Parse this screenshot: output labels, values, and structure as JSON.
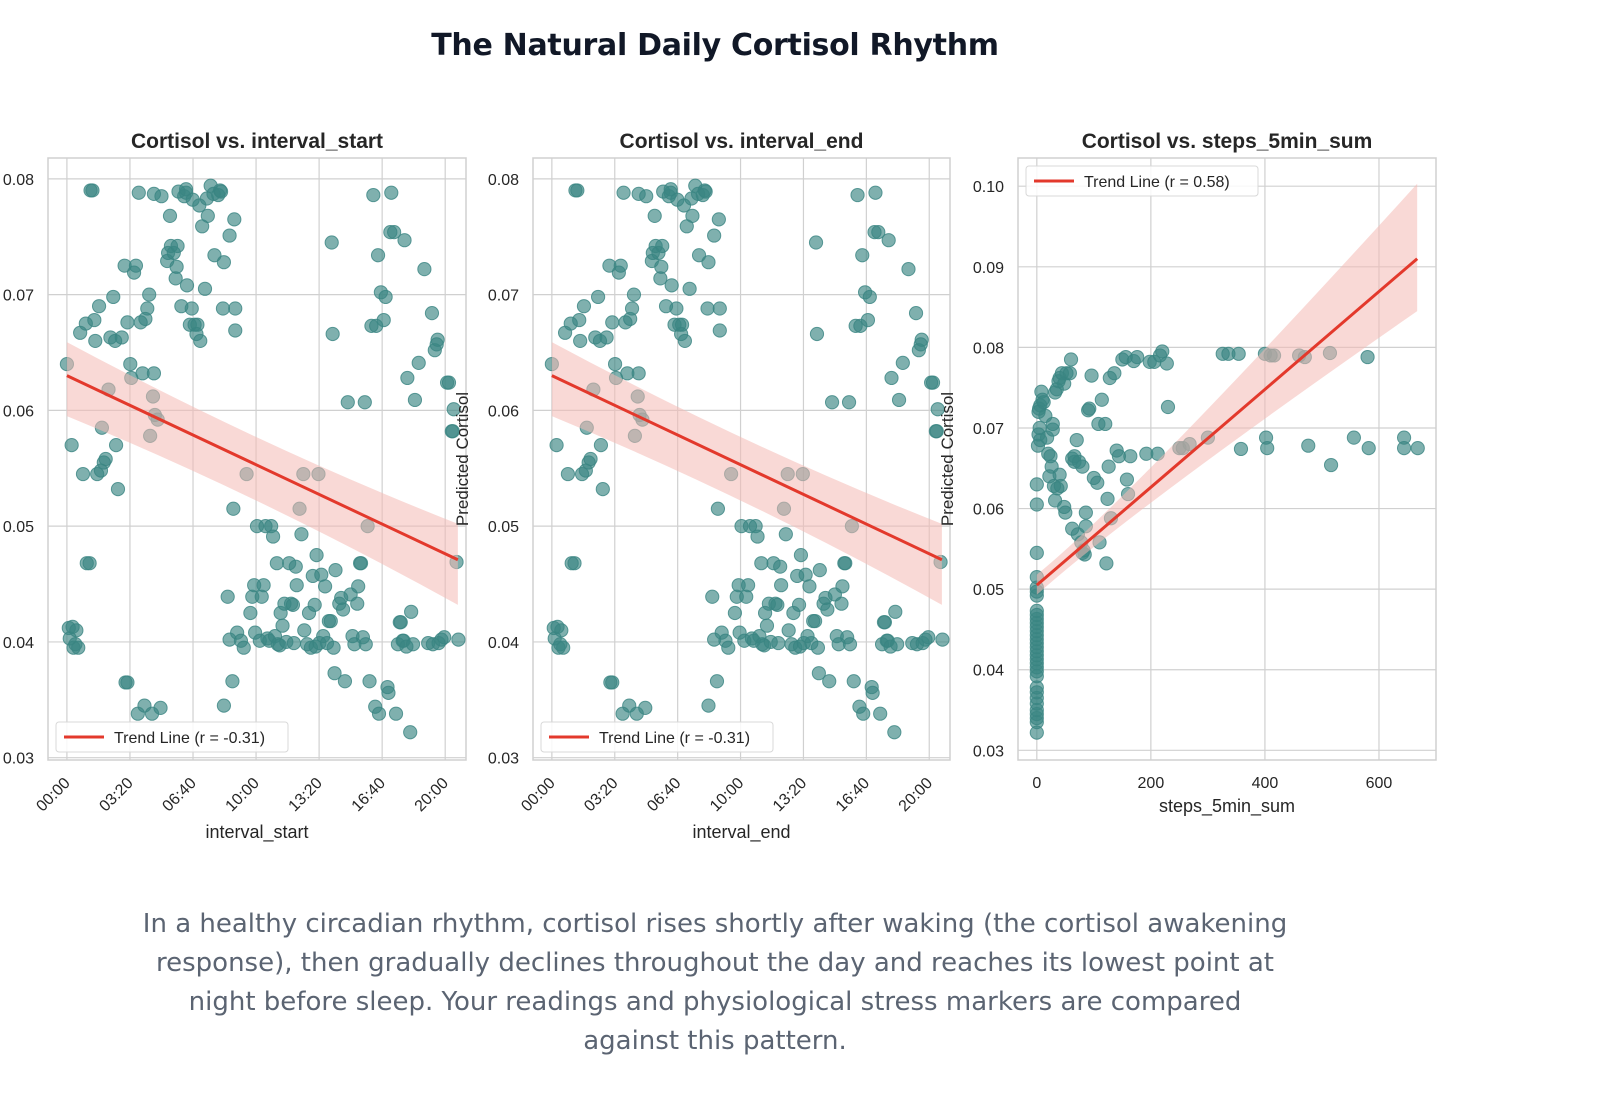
{
  "page": {
    "title": "The Natural Daily Cortisol Rhythm",
    "caption": "In a healthy circadian rhythm, cortisol rises shortly after waking (the cortisol awakening response), then gradually declines throughout the day and reaches its lowest point at night before sleep. Your readings and physiological stress markers are compared against this pattern."
  },
  "colors": {
    "points": "#3a8582",
    "trend": "#e3392c",
    "band": "#f4b9b5",
    "grid": "#d0d0d0",
    "title": "#111827",
    "caption": "#5b6472"
  },
  "chart_data": [
    {
      "type": "scatter",
      "title": "Cortisol vs. interval_start",
      "xlabel": "interval_start",
      "ylabel": "Predicted Cortisol",
      "x_unit": "hours",
      "xlim": [
        -1,
        21.1
      ],
      "ylim": [
        0.0298,
        0.0818
      ],
      "xticks": [
        0,
        3.333,
        6.667,
        10,
        13.333,
        16.667,
        20
      ],
      "xtick_labels": [
        "00:00",
        "03:20",
        "06:40",
        "10:00",
        "13:20",
        "16:40",
        "20:00"
      ],
      "yticks": [
        0.03,
        0.04,
        0.05,
        0.06,
        0.07,
        0.08
      ],
      "ytick_labels": [
        "0.03",
        "0.04",
        "0.05",
        "0.06",
        "0.07",
        "0.08"
      ],
      "grid": true,
      "legend": {
        "label": "Trend Line (r = -0.31)",
        "position": "lower-left"
      },
      "trend": {
        "r": -0.31,
        "x": [
          0,
          20.67
        ],
        "y": [
          0.063,
          0.0471
        ],
        "band_low": [
          0.0595,
          0.0432
        ],
        "band_high": [
          0.0659,
          0.0502
        ]
      },
      "points": "shared_time"
    },
    {
      "type": "scatter",
      "title": "Cortisol vs. interval_end",
      "xlabel": "interval_end",
      "ylabel": "Predicted Cortisol",
      "x_unit": "hours",
      "xlim": [
        -1,
        21.1
      ],
      "ylim": [
        0.0298,
        0.0818
      ],
      "xticks": [
        0,
        3.333,
        6.667,
        10,
        13.333,
        16.667,
        20
      ],
      "xtick_labels": [
        "00:00",
        "03:20",
        "06:40",
        "10:00",
        "13:20",
        "16:40",
        "20:00"
      ],
      "yticks": [
        0.03,
        0.04,
        0.05,
        0.06,
        0.07,
        0.08
      ],
      "ytick_labels": [
        "0.03",
        "0.04",
        "0.05",
        "0.06",
        "0.07",
        "0.08"
      ],
      "grid": true,
      "legend": {
        "label": "Trend Line (r = -0.31)",
        "position": "lower-left"
      },
      "trend": {
        "r": -0.31,
        "x": [
          0,
          20.67
        ],
        "y": [
          0.063,
          0.0471
        ],
        "band_low": [
          0.0595,
          0.0432
        ],
        "band_high": [
          0.0659,
          0.0502
        ]
      },
      "points": "shared_time"
    },
    {
      "type": "scatter",
      "title": "Cortisol vs. steps_5min_sum",
      "xlabel": "steps_5min_sum",
      "ylabel": "Predicted Cortisol",
      "xlim": [
        -33,
        700
      ],
      "ylim": [
        0.0288,
        0.1035
      ],
      "xticks": [
        0,
        200,
        400,
        600
      ],
      "xtick_labels": [
        "0",
        "200",
        "400",
        "600"
      ],
      "yticks": [
        0.03,
        0.04,
        0.05,
        0.06,
        0.07,
        0.08,
        0.09,
        0.1
      ],
      "ytick_labels": [
        "0.03",
        "0.04",
        "0.05",
        "0.06",
        "0.07",
        "0.08",
        "0.09",
        "0.10"
      ],
      "grid": true,
      "legend": {
        "label": "Trend Line (r = 0.58)",
        "position": "upper-left"
      },
      "trend": {
        "r": 0.58,
        "x": [
          0,
          667
        ],
        "y": [
          0.0505,
          0.091
        ],
        "band_low": [
          0.0493,
          0.0845
        ],
        "band_high": [
          0.0518,
          0.1003
        ]
      },
      "points_xy": [
        [
          0,
          0.0322
        ],
        [
          0,
          0.0335
        ],
        [
          0,
          0.034
        ],
        [
          0,
          0.0345
        ],
        [
          0,
          0.035
        ],
        [
          0,
          0.0358
        ],
        [
          0,
          0.0365
        ],
        [
          0,
          0.0372
        ],
        [
          0,
          0.0378
        ],
        [
          0,
          0.0392
        ],
        [
          0,
          0.0398
        ],
        [
          0,
          0.0403
        ],
        [
          0,
          0.0408
        ],
        [
          0,
          0.0413
        ],
        [
          0,
          0.0418
        ],
        [
          0,
          0.0423
        ],
        [
          0,
          0.0428
        ],
        [
          0,
          0.0433
        ],
        [
          0,
          0.0438
        ],
        [
          0,
          0.0443
        ],
        [
          0,
          0.0448
        ],
        [
          0,
          0.0453
        ],
        [
          0,
          0.0458
        ],
        [
          0,
          0.0463
        ],
        [
          0,
          0.0468
        ],
        [
          0,
          0.0473
        ],
        [
          0,
          0.0492
        ],
        [
          0,
          0.0497
        ],
        [
          0,
          0.0502
        ],
        [
          0,
          0.0515
        ],
        [
          0,
          0.0545
        ],
        [
          0,
          0.0605
        ],
        [
          0,
          0.063
        ],
        [
          2,
          0.0678
        ],
        [
          3,
          0.0692
        ],
        [
          5,
          0.07
        ],
        [
          6,
          0.0685
        ],
        [
          4,
          0.0724
        ],
        [
          6,
          0.0728
        ],
        [
          8,
          0.0745
        ],
        [
          10,
          0.0735
        ],
        [
          3,
          0.072
        ],
        [
          12,
          0.0732
        ],
        [
          15,
          0.0715
        ],
        [
          18,
          0.0688
        ],
        [
          20,
          0.0668
        ],
        [
          24,
          0.0665
        ],
        [
          26,
          0.0652
        ],
        [
          22,
          0.064
        ],
        [
          30,
          0.0628
        ],
        [
          32,
          0.061
        ],
        [
          36,
          0.0625
        ],
        [
          40,
          0.0642
        ],
        [
          42,
          0.0628
        ],
        [
          48,
          0.0602
        ],
        [
          50,
          0.0595
        ],
        [
          28,
          0.0698
        ],
        [
          28,
          0.0705
        ],
        [
          32,
          0.0744
        ],
        [
          35,
          0.0748
        ],
        [
          38,
          0.0758
        ],
        [
          40,
          0.0762
        ],
        [
          44,
          0.0768
        ],
        [
          48,
          0.0755
        ],
        [
          52,
          0.0768
        ],
        [
          58,
          0.0768
        ],
        [
          60,
          0.0785
        ],
        [
          62,
          0.0662
        ],
        [
          66,
          0.0658
        ],
        [
          66,
          0.0665
        ],
        [
          70,
          0.0685
        ],
        [
          74,
          0.0658
        ],
        [
          80,
          0.0652
        ],
        [
          62,
          0.0575
        ],
        [
          72,
          0.0568
        ],
        [
          78,
          0.0558
        ],
        [
          80,
          0.0545
        ],
        [
          82,
          0.0548
        ],
        [
          84,
          0.0543
        ],
        [
          86,
          0.0578
        ],
        [
          86,
          0.0595
        ],
        [
          90,
          0.0722
        ],
        [
          92,
          0.0724
        ],
        [
          96,
          0.0765
        ],
        [
          100,
          0.0638
        ],
        [
          106,
          0.0632
        ],
        [
          108,
          0.0705
        ],
        [
          110,
          0.0558
        ],
        [
          114,
          0.0735
        ],
        [
          120,
          0.0705
        ],
        [
          122,
          0.0532
        ],
        [
          124,
          0.0612
        ],
        [
          126,
          0.0652
        ],
        [
          128,
          0.0762
        ],
        [
          130,
          0.0588
        ],
        [
          136,
          0.0768
        ],
        [
          140,
          0.0672
        ],
        [
          144,
          0.0665
        ],
        [
          150,
          0.0785
        ],
        [
          156,
          0.0788
        ],
        [
          158,
          0.0636
        ],
        [
          160,
          0.0618
        ],
        [
          164,
          0.0665
        ],
        [
          170,
          0.0783
        ],
        [
          176,
          0.0788
        ],
        [
          192,
          0.0668
        ],
        [
          198,
          0.0782
        ],
        [
          206,
          0.0782
        ],
        [
          212,
          0.0668
        ],
        [
          216,
          0.079
        ],
        [
          220,
          0.0795
        ],
        [
          228,
          0.078
        ],
        [
          230,
          0.0726
        ],
        [
          250,
          0.0675
        ],
        [
          256,
          0.0675
        ],
        [
          268,
          0.068
        ],
        [
          300,
          0.0688
        ],
        [
          326,
          0.0792
        ],
        [
          336,
          0.0792
        ],
        [
          354,
          0.0792
        ],
        [
          358,
          0.0674
        ],
        [
          400,
          0.0792
        ],
        [
          402,
          0.0688
        ],
        [
          404,
          0.0675
        ],
        [
          410,
          0.079
        ],
        [
          416,
          0.079
        ],
        [
          460,
          0.079
        ],
        [
          470,
          0.0788
        ],
        [
          476,
          0.0678
        ],
        [
          514,
          0.0793
        ],
        [
          516,
          0.0654
        ],
        [
          556,
          0.0688
        ],
        [
          580,
          0.0788
        ],
        [
          582,
          0.0675
        ],
        [
          644,
          0.0688
        ],
        [
          644,
          0.0675
        ],
        [
          668,
          0.0675
        ]
      ]
    }
  ],
  "shared_time_points": [
    [
      0,
      0.064
    ],
    [
      0.1,
      0.0412
    ],
    [
      0.15,
      0.0403
    ],
    [
      0.25,
      0.057
    ],
    [
      0.3,
      0.0413
    ],
    [
      0.35,
      0.0395
    ],
    [
      0.45,
      0.0398
    ],
    [
      0.5,
      0.041
    ],
    [
      0.6,
      0.0395
    ],
    [
      0.7,
      0.0667
    ],
    [
      1.0,
      0.0675
    ],
    [
      0.85,
      0.0545
    ],
    [
      1.05,
      0.0468
    ],
    [
      1.2,
      0.0468
    ],
    [
      1.25,
      0.079
    ],
    [
      1.35,
      0.079
    ],
    [
      1.45,
      0.0678
    ],
    [
      1.5,
      0.066
    ],
    [
      1.6,
      0.0545
    ],
    [
      1.7,
      0.069
    ],
    [
      1.8,
      0.0548
    ],
    [
      1.85,
      0.0585
    ],
    [
      1.95,
      0.0555
    ],
    [
      2.05,
      0.0558
    ],
    [
      2.2,
      0.0618
    ],
    [
      2.3,
      0.0663
    ],
    [
      2.45,
      0.0698
    ],
    [
      2.55,
      0.066
    ],
    [
      2.7,
      0.0532
    ],
    [
      2.6,
      0.057
    ],
    [
      2.9,
      0.0663
    ],
    [
      3.05,
      0.0725
    ],
    [
      3.1,
      0.0365
    ],
    [
      3.2,
      0.0365
    ],
    [
      3.2,
      0.0676
    ],
    [
      3.35,
      0.064
    ],
    [
      3.4,
      0.0628
    ],
    [
      3.55,
      0.0719
    ],
    [
      3.65,
      0.0725
    ],
    [
      3.75,
      0.0338
    ],
    [
      3.8,
      0.0788
    ],
    [
      3.9,
      0.0676
    ],
    [
      4.0,
      0.0632
    ],
    [
      4.1,
      0.0345
    ],
    [
      4.15,
      0.0679
    ],
    [
      4.25,
      0.0688
    ],
    [
      4.35,
      0.07
    ],
    [
      4.4,
      0.0578
    ],
    [
      4.5,
      0.0338
    ],
    [
      4.55,
      0.0612
    ],
    [
      4.6,
      0.0787
    ],
    [
      4.6,
      0.0632
    ],
    [
      4.65,
      0.0596
    ],
    [
      4.8,
      0.0592
    ],
    [
      4.95,
      0.0343
    ],
    [
      5.0,
      0.0785
    ],
    [
      5.3,
      0.0729
    ],
    [
      5.35,
      0.0736
    ],
    [
      5.45,
      0.0768
    ],
    [
      5.5,
      0.0742
    ],
    [
      5.65,
      0.0736
    ],
    [
      5.75,
      0.0714
    ],
    [
      5.8,
      0.0724
    ],
    [
      5.85,
      0.0742
    ],
    [
      5.9,
      0.0789
    ],
    [
      6.05,
      0.069
    ],
    [
      6.2,
      0.0785
    ],
    [
      6.3,
      0.0788
    ],
    [
      6.3,
      0.0791
    ],
    [
      6.35,
      0.0708
    ],
    [
      6.5,
      0.0674
    ],
    [
      6.6,
      0.0688
    ],
    [
      6.65,
      0.0782
    ],
    [
      6.75,
      0.0674
    ],
    [
      6.85,
      0.0666
    ],
    [
      6.9,
      0.0674
    ],
    [
      7.0,
      0.0777
    ],
    [
      7.05,
      0.066
    ],
    [
      7.15,
      0.0759
    ],
    [
      7.3,
      0.0705
    ],
    [
      7.4,
      0.0783
    ],
    [
      7.45,
      0.0768
    ],
    [
      7.6,
      0.0794
    ],
    [
      7.75,
      0.0787
    ],
    [
      7.8,
      0.0734
    ],
    [
      8.0,
      0.0786
    ],
    [
      8.1,
      0.079
    ],
    [
      8.15,
      0.0789
    ],
    [
      8.25,
      0.0688
    ],
    [
      8.3,
      0.0728
    ],
    [
      8.6,
      0.0751
    ],
    [
      8.85,
      0.0765
    ],
    [
      8.9,
      0.0669
    ],
    [
      8.9,
      0.0688
    ],
    [
      8.3,
      0.0345
    ],
    [
      8.5,
      0.0439
    ],
    [
      8.6,
      0.0402
    ],
    [
      8.75,
      0.0366
    ],
    [
      8.8,
      0.0515
    ],
    [
      9.0,
      0.0408
    ],
    [
      9.2,
      0.0401
    ],
    [
      9.35,
      0.0395
    ],
    [
      9.5,
      0.0545
    ],
    [
      9.7,
      0.0425
    ],
    [
      9.8,
      0.0439
    ],
    [
      9.9,
      0.0449
    ],
    [
      9.95,
      0.0408
    ],
    [
      10.05,
      0.05
    ],
    [
      10.2,
      0.0401
    ],
    [
      10.3,
      0.0439
    ],
    [
      10.4,
      0.0449
    ],
    [
      10.5,
      0.05
    ],
    [
      10.6,
      0.0403
    ],
    [
      10.7,
      0.0401
    ],
    [
      10.8,
      0.05
    ],
    [
      10.9,
      0.0491
    ],
    [
      11.0,
      0.0405
    ],
    [
      11.1,
      0.0468
    ],
    [
      11.15,
      0.0398
    ],
    [
      11.25,
      0.0397
    ],
    [
      11.3,
      0.0425
    ],
    [
      11.4,
      0.0414
    ],
    [
      11.5,
      0.0433
    ],
    [
      11.6,
      0.04
    ],
    [
      11.75,
      0.0468
    ],
    [
      11.85,
      0.0433
    ],
    [
      11.95,
      0.0432
    ],
    [
      12.0,
      0.0399
    ],
    [
      12.1,
      0.0465
    ],
    [
      12.15,
      0.0449
    ],
    [
      12.3,
      0.0515
    ],
    [
      12.4,
      0.0493
    ],
    [
      12.5,
      0.0545
    ],
    [
      12.55,
      0.041
    ],
    [
      12.7,
      0.0398
    ],
    [
      12.8,
      0.0425
    ],
    [
      12.9,
      0.0395
    ],
    [
      13.0,
      0.0457
    ],
    [
      13.1,
      0.0432
    ],
    [
      13.15,
      0.0396
    ],
    [
      13.2,
      0.0475
    ],
    [
      13.3,
      0.0545
    ],
    [
      13.35,
      0.0399
    ],
    [
      13.45,
      0.0458
    ],
    [
      13.55,
      0.0405
    ],
    [
      13.65,
      0.0448
    ],
    [
      13.75,
      0.0399
    ],
    [
      13.85,
      0.0418
    ],
    [
      13.95,
      0.0418
    ],
    [
      14.0,
      0.0745
    ],
    [
      14.05,
      0.0666
    ],
    [
      14.1,
      0.0395
    ],
    [
      14.15,
      0.0373
    ],
    [
      14.2,
      0.0462
    ],
    [
      14.4,
      0.0433
    ],
    [
      14.5,
      0.0438
    ],
    [
      14.6,
      0.0428
    ],
    [
      14.7,
      0.0366
    ],
    [
      14.85,
      0.0607
    ],
    [
      15.0,
      0.0441
    ],
    [
      15.1,
      0.0405
    ],
    [
      15.2,
      0.0398
    ],
    [
      15.35,
      0.0433
    ],
    [
      15.4,
      0.0448
    ],
    [
      15.5,
      0.0468
    ],
    [
      15.55,
      0.0468
    ],
    [
      15.65,
      0.0404
    ],
    [
      15.75,
      0.0607
    ],
    [
      15.8,
      0.0398
    ],
    [
      15.9,
      0.05
    ],
    [
      16.0,
      0.0366
    ],
    [
      16.1,
      0.0673
    ],
    [
      16.2,
      0.0786
    ],
    [
      16.3,
      0.0344
    ],
    [
      16.35,
      0.0673
    ],
    [
      16.45,
      0.0734
    ],
    [
      16.5,
      0.0338
    ],
    [
      16.6,
      0.0702
    ],
    [
      16.75,
      0.0678
    ],
    [
      16.85,
      0.0698
    ],
    [
      16.95,
      0.0361
    ],
    [
      17.0,
      0.0356
    ],
    [
      17.1,
      0.0754
    ],
    [
      17.15,
      0.0788
    ],
    [
      17.3,
      0.0754
    ],
    [
      17.4,
      0.0338
    ],
    [
      17.5,
      0.0398
    ],
    [
      17.6,
      0.0417
    ],
    [
      17.65,
      0.0417
    ],
    [
      17.75,
      0.0401
    ],
    [
      17.8,
      0.0401
    ],
    [
      17.85,
      0.0747
    ],
    [
      17.95,
      0.0396
    ],
    [
      18.0,
      0.0628
    ],
    [
      18.15,
      0.0322
    ],
    [
      18.2,
      0.0426
    ],
    [
      18.3,
      0.0398
    ],
    [
      18.4,
      0.0609
    ],
    [
      18.6,
      0.0641
    ],
    [
      18.9,
      0.0722
    ],
    [
      19.1,
      0.0399
    ],
    [
      19.3,
      0.0684
    ],
    [
      19.35,
      0.0398
    ],
    [
      19.45,
      0.0652
    ],
    [
      19.55,
      0.0657
    ],
    [
      19.6,
      0.0661
    ],
    [
      19.65,
      0.0399
    ],
    [
      19.8,
      0.0402
    ],
    [
      19.95,
      0.0404
    ],
    [
      20.1,
      0.0624
    ],
    [
      20.2,
      0.0624
    ],
    [
      20.35,
      0.0582
    ],
    [
      20.4,
      0.0582
    ],
    [
      20.45,
      0.0601
    ],
    [
      20.6,
      0.0469
    ],
    [
      20.7,
      0.0402
    ]
  ]
}
